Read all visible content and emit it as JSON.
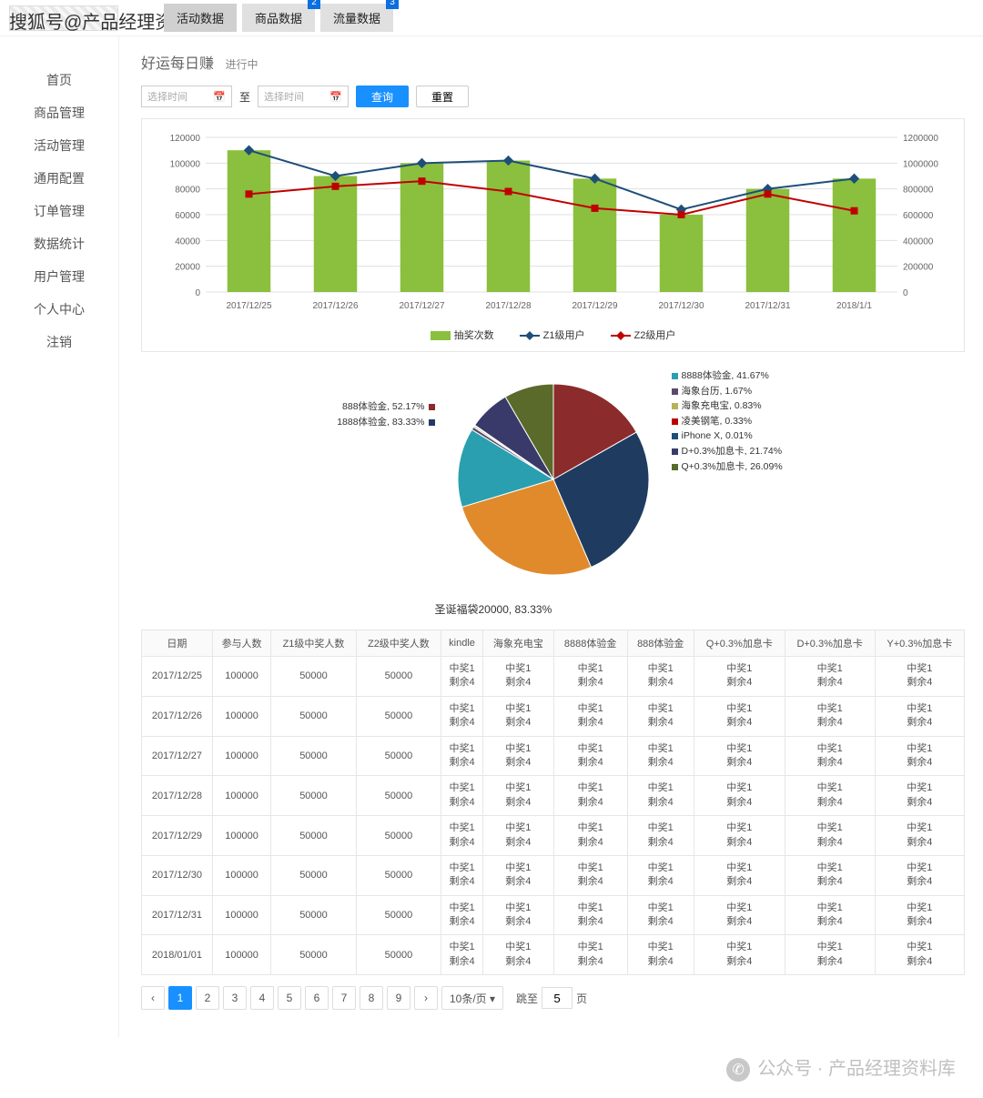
{
  "watermark": "搜狐号@产品经理资料库",
  "tabs": [
    {
      "label": "活动数据",
      "badge": null
    },
    {
      "label": "商品数据",
      "badge": "2"
    },
    {
      "label": "流量数据",
      "badge": "3"
    }
  ],
  "sidebar": [
    "首页",
    "商品管理",
    "活动管理",
    "通用配置",
    "订单管理",
    "数据统计",
    "用户管理",
    "个人中心",
    "注销"
  ],
  "page": {
    "title": "好运每日赚",
    "status": "进行中"
  },
  "filter": {
    "date_ph": "选择时间",
    "sep": "至",
    "query": "查询",
    "reset": "重置"
  },
  "bar_chart": {
    "categories": [
      "2017/12/25",
      "2017/12/26",
      "2017/12/27",
      "2017/12/28",
      "2017/12/29",
      "2017/12/30",
      "2017/12/31",
      "2018/1/1"
    ],
    "left_max": 120000,
    "left_step": 20000,
    "right_max": 1200000,
    "right_step": 200000,
    "bar_values": [
      110000,
      90000,
      100000,
      102000,
      88000,
      60000,
      80000,
      88000
    ],
    "line1_values": [
      110000,
      90000,
      100000,
      102000,
      88000,
      64000,
      80000,
      88000
    ],
    "line2_values": [
      76000,
      82000,
      86000,
      78000,
      65000,
      60000,
      76000,
      63000
    ],
    "bar_color": "#8bbf3e",
    "line1_color": "#1f4e79",
    "line2_color": "#c00000",
    "marker1": "diamond",
    "marker1_fill": "#1f4e79",
    "marker2": "square",
    "marker2_fill": "#c00000",
    "grid_color": "#e0e0e0",
    "bar_width": 0.5,
    "legend": [
      {
        "type": "bar",
        "label": "抽奖次数",
        "color": "#8bbf3e"
      },
      {
        "type": "line",
        "label": "Z1级用户",
        "color": "#1f4e79"
      },
      {
        "type": "line",
        "label": "Z2级用户",
        "color": "#c00000"
      }
    ]
  },
  "pie": {
    "slices": [
      {
        "label": "888体验金, 52.17%",
        "color": "#8b2b2b",
        "value": 52.17,
        "side": "left"
      },
      {
        "label": "1888体验金, 83.33%",
        "color": "#1f3c60",
        "value": 83.33,
        "side": "left"
      },
      {
        "label": "圣诞福袋20000, 83.33%",
        "color": "#e08a2b",
        "value": 83.33,
        "side": "bottom"
      },
      {
        "label": "8888体验金, 41.67%",
        "color": "#2a9fb0",
        "value": 41.67,
        "side": "right"
      },
      {
        "label": "海象台历, 1.67%",
        "color": "#5a4a70",
        "value": 1.67,
        "side": "right"
      },
      {
        "label": "海象充电宝, 0.83%",
        "color": "#b8b05a",
        "value": 0.83,
        "side": "right"
      },
      {
        "label": "凌美钢笔, 0.33%",
        "color": "#c00000",
        "value": 0.33,
        "side": "right"
      },
      {
        "label": "iPhone X, 0.01%",
        "color": "#1f4e79",
        "value": 0.01,
        "side": "right"
      },
      {
        "label": "D+0.3%加息卡, 21.74%",
        "color": "#3a3a6a",
        "value": 21.74,
        "side": "right"
      },
      {
        "label": "Q+0.3%加息卡, 26.09%",
        "color": "#5a6a2a",
        "value": 26.09,
        "side": "right"
      }
    ]
  },
  "table": {
    "columns": [
      "日期",
      "参与人数",
      "Z1级中奖人数",
      "Z2级中奖人数",
      "kindle",
      "海象充电宝",
      "8888体验金",
      "888体验金",
      "Q+0.3%加息卡",
      "D+0.3%加息卡",
      "Y+0.3%加息卡"
    ],
    "dates": [
      "2017/12/25",
      "2017/12/26",
      "2017/12/27",
      "2017/12/28",
      "2017/12/29",
      "2017/12/30",
      "2017/12/31",
      "2018/01/01"
    ],
    "participants": "100000",
    "z1": "50000",
    "z2": "50000",
    "cell_top": "中奖1",
    "cell_bot": "剩余4"
  },
  "pager": {
    "pages": [
      "1",
      "2",
      "3",
      "4",
      "5",
      "6",
      "7",
      "8",
      "9"
    ],
    "size": "10条/页",
    "jump_label": "跳至",
    "jump_val": "5",
    "jump_suffix": "页"
  },
  "footer": "公众号 · 产品经理资料库"
}
